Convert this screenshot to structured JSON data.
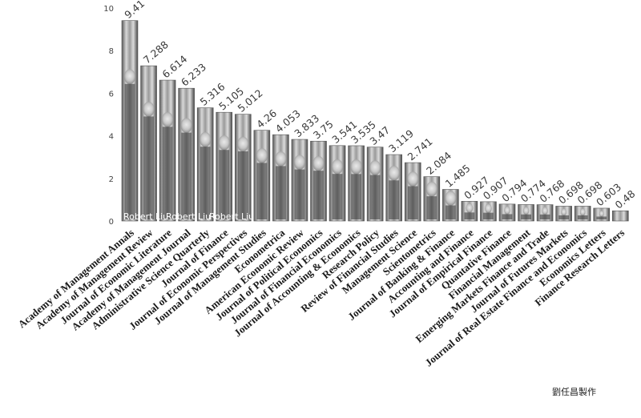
{
  "chart_data": {
    "type": "bar",
    "title": "",
    "xlabel": "",
    "ylabel": "",
    "ylim": [
      0,
      10
    ],
    "yticks": [
      0,
      2,
      4,
      6,
      8,
      10
    ],
    "grid": false,
    "legend": "none",
    "bar_fill": "portrait-photo",
    "categories": [
      "Academy of Management Annals",
      "Academy of Management Review",
      "Journal of Economic Literature",
      "Academy of Management Journal",
      "Administrative Science Quarterly",
      "Journal of Finance",
      "Journal of Economic Perspectives",
      "Journal of Management Studies",
      "Econometrica",
      "American Economic Review",
      "Journal of Political Economics",
      "Journal of Financial Economics",
      "Journal of Accounting & Economics",
      "Research Policy",
      "Review of Financial Studies",
      "Management Science",
      "Scientometrics",
      "Journal of Banking & Finance",
      "Accounting and Finance",
      "Journal of Empirical Finance",
      "Quantative Finance",
      "Financial Management",
      "Emerging Markets Finance and Trade",
      "Journal of Futures Markets",
      "Journal of Real Estate Finance and Economics",
      "Economics Letters",
      "Finance Research Letters"
    ],
    "values": [
      9.41,
      7.288,
      6.614,
      6.233,
      5.316,
      5.105,
      5.012,
      4.26,
      4.053,
      3.833,
      3.75,
      3.541,
      3.535,
      3.47,
      3.119,
      2.741,
      2.084,
      1.485,
      0.927,
      0.907,
      0.794,
      0.774,
      0.768,
      0.698,
      0.698,
      0.603,
      0.48
    ],
    "value_labels": [
      "9.41",
      "7.288",
      "6.614",
      "6.233",
      "5.316",
      "5.105",
      "5.012",
      "4.26",
      "4.053",
      "3.833",
      "3.75",
      "3.541",
      "3.535",
      "3.47",
      "3.119",
      "2.741",
      "2.084",
      "1.485",
      "0.927",
      "0.907",
      "0.794",
      "0.774",
      "0.768",
      "0.698",
      "0.698",
      "0.603",
      "0.48"
    ]
  },
  "watermark": [
    "Robert Liu",
    "Robert Liu",
    "Robert Liu"
  ],
  "credit": "劉任昌製作",
  "colors": {
    "background": "#ffffff",
    "bar_dark": "#3a3a3a",
    "bar_light": "#e6e6e6",
    "text": "#1a1a1a"
  }
}
